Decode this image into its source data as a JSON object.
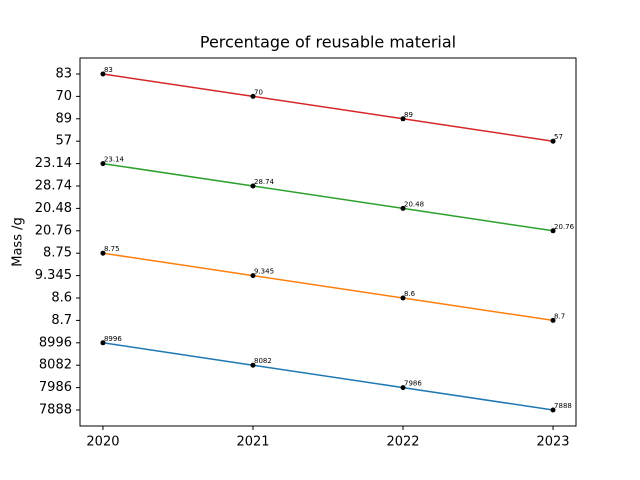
{
  "chart_data": {
    "type": "line",
    "title": "Percentage of reusable material",
    "y_label": "Mass /g",
    "categories": [
      "2020",
      "2021",
      "2022",
      "2023"
    ],
    "ycategories": [
      "7888",
      "7986",
      "8082",
      "8996",
      "8.7",
      "8.6",
      "9.345",
      "8.75",
      "20.76",
      "20.48",
      "28.74",
      "23.14",
      "57",
      "89",
      "70",
      "83"
    ],
    "series": [
      {
        "color": "#1f77b4",
        "values": [
          8996,
          8082,
          7986,
          7888
        ]
      },
      {
        "color": "#ff7f0e",
        "values": [
          8.75,
          9.345,
          8.6,
          8.7
        ]
      },
      {
        "color": "#2ca02c",
        "values": [
          23.14,
          28.74,
          20.48,
          20.76
        ]
      },
      {
        "color": "#d62728",
        "values": [
          83,
          70,
          89,
          57
        ]
      }
    ]
  }
}
